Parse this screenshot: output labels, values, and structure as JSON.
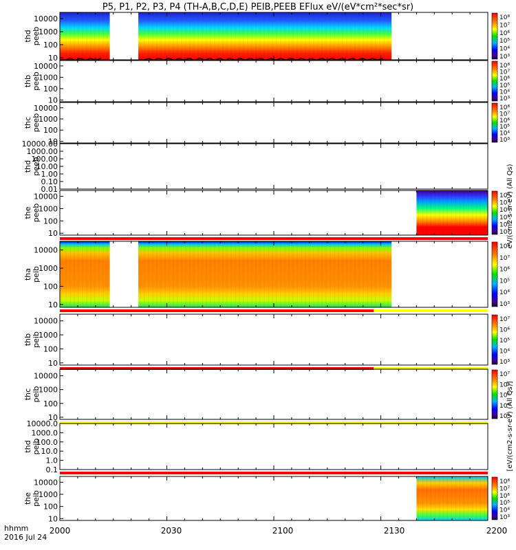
{
  "title": "P5, P1, P2, P3, P4 (TH-A,B,C,D,E) PEIB,PEEB EFlux eV/(eV*cm²*sec*sr)",
  "colorbar_unit_electrons": "eV/(cm2-s-sr-eV) (All Qs)",
  "colorbar_unit_ions": "[eV/(cm2-s-sr-eV) (All Qs)]",
  "time_axis": {
    "label_line1": "hhmm",
    "label_line2": "2016 Jul 24",
    "ticks": [
      "2000",
      "2030",
      "2100",
      "2130",
      "2200"
    ]
  },
  "colors": {
    "flag_red": "#ff0000",
    "flag_yellow": "#ffff00",
    "spectrogram_scheme": "rainbow"
  },
  "chart_data": [
    {
      "type": "heatmap",
      "probe": "thd",
      "product": "peeb",
      "ylabel": [
        "thd",
        "peeb"
      ],
      "yscale": "log",
      "yticks": [
        "10000",
        "1000",
        "100",
        "10"
      ],
      "ylim": [
        7,
        30000
      ],
      "x_unit": "HH:MM",
      "data_intervals": [
        [
          "20:00",
          "20:14"
        ],
        [
          "20:22",
          "21:33"
        ]
      ],
      "colorbar_ticks": [
        "10⁸",
        "10⁷",
        "10⁶",
        "10⁵",
        "10⁴",
        "10³"
      ],
      "overlay_line": {
        "color": "#000000",
        "energy_approx_eV": 10
      },
      "flag_bar_below": null
    },
    {
      "type": "heatmap",
      "probe": "thb",
      "product": "peeb",
      "ylabel": [
        "thb",
        "peeb"
      ],
      "yscale": "log",
      "yticks": [
        "10000",
        "1000",
        "100",
        "10"
      ],
      "ylim": [
        7,
        30000
      ],
      "data_intervals": [],
      "colorbar_ticks": [
        "10⁸",
        "10⁷",
        "10⁶",
        "10⁵",
        "10⁴",
        "10³"
      ],
      "flag_bar_below": null
    },
    {
      "type": "heatmap",
      "probe": "thc",
      "product": "peeb",
      "ylabel": [
        "thc",
        "peeb"
      ],
      "yscale": "log",
      "yticks": [
        "10000",
        "1000",
        "100",
        "10"
      ],
      "ylim": [
        7,
        30000
      ],
      "data_intervals": [],
      "colorbar_ticks": [
        "10⁸",
        "10⁷",
        "10⁶",
        "10⁵",
        "10⁴",
        "10³"
      ],
      "flag_bar_below": null
    },
    {
      "type": "heatmap",
      "probe": "thd",
      "product": "peeb",
      "ylabel": [
        "thd",
        "peeb"
      ],
      "yscale": "log",
      "yticks": [
        "10000.00",
        "1000.00",
        "100.00",
        "10.00",
        "1.00",
        "0.10",
        "0.01"
      ],
      "ylim": [
        0.01,
        10000
      ],
      "data_intervals": [],
      "colorbar_ticks": [],
      "flag_bar_below": null
    },
    {
      "type": "heatmap",
      "probe": "the",
      "product": "peeb",
      "ylabel": [
        "the",
        "peeb"
      ],
      "yscale": "log",
      "yticks": [
        "10000",
        "1000",
        "100",
        "10"
      ],
      "ylim": [
        7,
        30000
      ],
      "data_intervals": [
        [
          "21:40",
          "22:00"
        ]
      ],
      "colorbar_ticks": [
        "10⁸",
        "10⁷",
        "10⁶",
        "10⁵",
        "10⁴",
        "10³"
      ],
      "flag_bar_below": {
        "segments": [
          {
            "from": "20:00",
            "to": "22:00",
            "color": "#ff0000"
          }
        ]
      }
    },
    {
      "type": "heatmap",
      "probe": "tha",
      "product": "peib",
      "ylabel": [
        "tha",
        "peib"
      ],
      "yscale": "log",
      "yticks": [
        "10000",
        "1000",
        "100",
        "10"
      ],
      "ylim": [
        7,
        30000
      ],
      "data_intervals": [
        [
          "20:00",
          "20:14"
        ],
        [
          "20:22",
          "21:33"
        ]
      ],
      "colorbar_ticks": [
        "10⁸",
        "10⁷",
        "10⁶",
        "10⁵",
        "10⁴",
        "10³"
      ],
      "flag_bar_below": {
        "segments": [
          {
            "from": "20:00",
            "to": "21:28",
            "color": "#ff0000"
          },
          {
            "from": "21:28",
            "to": "22:00",
            "color": "#ffff00"
          }
        ]
      }
    },
    {
      "type": "heatmap",
      "probe": "thb",
      "product": "peib",
      "ylabel": [
        "thb",
        "peib"
      ],
      "yscale": "log",
      "yticks": [
        "10000",
        "1000",
        "100",
        "10"
      ],
      "ylim": [
        7,
        30000
      ],
      "data_intervals": [],
      "colorbar_ticks": [
        "10⁷",
        "10⁶",
        "10⁵",
        "10⁴",
        "10³"
      ],
      "flag_bar_below": {
        "segments": [
          {
            "from": "20:00",
            "to": "21:28",
            "color": "#ff0000"
          },
          {
            "from": "21:28",
            "to": "22:00",
            "color": "#ffff00"
          }
        ]
      }
    },
    {
      "type": "heatmap",
      "probe": "thc",
      "product": "peib",
      "ylabel": [
        "thc",
        "peib"
      ],
      "yscale": "log",
      "yticks": [
        "10000",
        "1000",
        "100",
        "10"
      ],
      "ylim": [
        7,
        30000
      ],
      "data_intervals": [],
      "colorbar_ticks": [
        "10⁷",
        "10⁶",
        "10⁵",
        "10⁴",
        "10³"
      ],
      "flag_bar_below": {
        "segments": [
          {
            "from": "20:00",
            "to": "22:00",
            "color": "#ffff00"
          }
        ]
      }
    },
    {
      "type": "heatmap",
      "probe": "thd",
      "product": "peib",
      "ylabel": [
        "thd",
        "peib"
      ],
      "yscale": "log",
      "yticks": [
        "10000.0",
        "1000.0",
        "100.0",
        "10.0",
        "1.0",
        "0.1"
      ],
      "ylim": [
        0.1,
        10000
      ],
      "data_intervals": [],
      "colorbar_ticks": [],
      "flag_bar_below": {
        "segments": [
          {
            "from": "20:00",
            "to": "22:00",
            "color": "#ff0000"
          }
        ]
      }
    },
    {
      "type": "heatmap",
      "probe": "the",
      "product": "peib",
      "ylabel": [
        "the",
        "peib"
      ],
      "yscale": "log",
      "yticks": [
        "10000",
        "1000",
        "100",
        "10"
      ],
      "ylim": [
        7,
        30000
      ],
      "data_intervals": [
        [
          "21:40",
          "22:00"
        ]
      ],
      "colorbar_ticks": [
        "10⁸",
        "10⁷",
        "10⁶",
        "10⁵",
        "10⁴",
        "10³"
      ],
      "flag_bar_below": null
    }
  ]
}
